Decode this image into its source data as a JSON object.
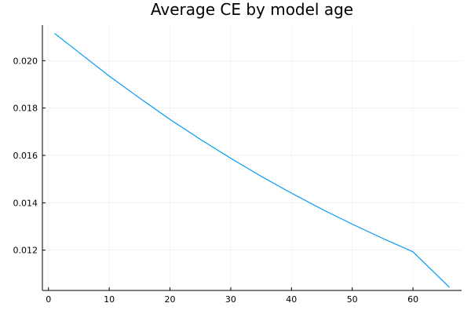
{
  "chart_data": {
    "type": "line",
    "title": "Average CE by model age",
    "xlabel": "",
    "ylabel": "",
    "xlim": [
      -1,
      68
    ],
    "ylim": [
      0.0103,
      0.0215
    ],
    "xticks": [
      0,
      10,
      20,
      30,
      40,
      50,
      60
    ],
    "yticks": [
      0.012,
      0.014,
      0.016,
      0.018,
      0.02
    ],
    "ytick_labels": [
      "0.012",
      "0.014",
      "0.016",
      "0.018",
      "0.020"
    ],
    "grid": true,
    "legend": "none",
    "series": [
      {
        "color": "#009af9",
        "x": [
          1,
          5,
          10,
          15,
          20,
          25,
          30,
          35,
          40,
          45,
          50,
          55,
          60,
          66
        ],
        "y": [
          0.02115,
          0.02035,
          0.01935,
          0.01842,
          0.01752,
          0.01668,
          0.01588,
          0.01512,
          0.01441,
          0.01373,
          0.0131,
          0.0125,
          0.01193,
          0.01043
        ]
      }
    ]
  }
}
